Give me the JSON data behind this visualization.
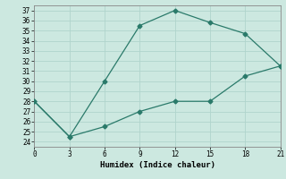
{
  "xlabel": "Humidex (Indice chaleur)",
  "x_upper": [
    0,
    3,
    6,
    9,
    12,
    15,
    18,
    21
  ],
  "y_upper": [
    28,
    24.5,
    30,
    35.5,
    37,
    35.8,
    34.7,
    31.5
  ],
  "x_lower": [
    0,
    3,
    6,
    9,
    12,
    15,
    18,
    21
  ],
  "y_lower": [
    28,
    24.5,
    25.5,
    27,
    28,
    28,
    30.5,
    31.5
  ],
  "line_color": "#2a7a6a",
  "bg_color": "#cce8e0",
  "grid_color": "#b0d4cc",
  "xlim": [
    0,
    21
  ],
  "ylim": [
    23.5,
    37.5
  ],
  "xticks": [
    0,
    3,
    6,
    9,
    12,
    15,
    18,
    21
  ],
  "yticks": [
    24,
    25,
    26,
    27,
    28,
    29,
    30,
    31,
    32,
    33,
    34,
    35,
    36,
    37
  ]
}
